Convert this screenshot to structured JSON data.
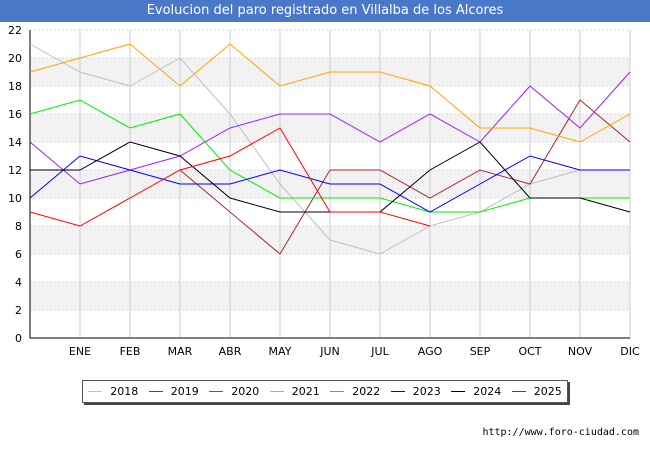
{
  "chart_data": {
    "type": "line",
    "title": "Evolucion del paro registrado en Villalba de los Alcores",
    "xlabel": "",
    "ylabel": "",
    "ylim": [
      0,
      22
    ],
    "yticks": [
      0,
      2,
      4,
      6,
      8,
      10,
      12,
      14,
      16,
      18,
      20,
      22
    ],
    "categories": [
      "",
      "ENE",
      "FEB",
      "MAR",
      "ABR",
      "MAY",
      "JUN",
      "JUL",
      "AGO",
      "SEP",
      "OCT",
      "NOV",
      "DIC"
    ],
    "grid": true,
    "legend_position": "bottom",
    "series": [
      {
        "name": "2018",
        "color": "#c0c0c0",
        "values": [
          21,
          19,
          18,
          20,
          16,
          11,
          7,
          6,
          8,
          9,
          11,
          12,
          null
        ]
      },
      {
        "name": "2019",
        "color": "#a52a2a",
        "values": [
          9,
          null,
          null,
          12,
          9,
          6,
          12,
          12,
          10,
          12,
          11,
          17,
          14
        ]
      },
      {
        "name": "2020",
        "color": "#a020f0",
        "values": [
          14,
          11,
          12,
          13,
          15,
          16,
          16,
          14,
          16,
          14,
          18,
          15,
          19
        ]
      },
      {
        "name": "2021",
        "color": "#ffa500",
        "values": [
          19,
          20,
          21,
          18,
          21,
          18,
          19,
          19,
          18,
          15,
          15,
          14,
          16
        ]
      },
      {
        "name": "2022",
        "color": "#00ee00",
        "values": [
          16,
          17,
          15,
          16,
          12,
          10,
          10,
          10,
          9,
          9,
          10,
          10,
          10
        ]
      },
      {
        "name": "2023",
        "color": "#0000ff",
        "values": [
          10,
          13,
          12,
          11,
          11,
          12,
          11,
          11,
          9,
          11,
          13,
          12,
          12
        ]
      },
      {
        "name": "2024",
        "color": "#000000",
        "values": [
          12,
          12,
          14,
          13,
          10,
          9,
          9,
          9,
          12,
          14,
          10,
          10,
          9
        ]
      },
      {
        "name": "2025",
        "color": "#ff0000",
        "values": [
          9,
          8,
          10,
          12,
          13,
          15,
          9,
          9,
          8,
          null,
          null,
          null,
          null
        ]
      }
    ]
  },
  "source_text": "http://www.foro-ciudad.com"
}
